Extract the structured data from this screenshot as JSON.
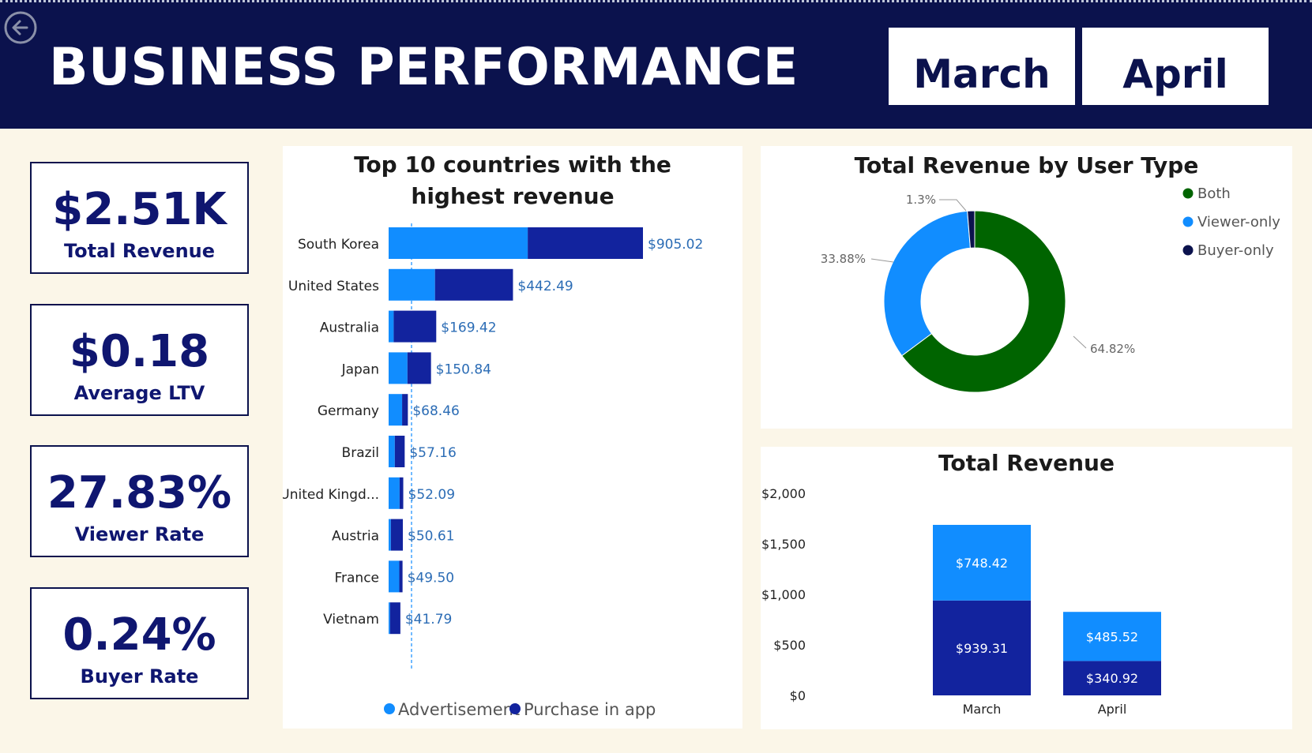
{
  "header": {
    "title": "BUSINESS PERFORMANCE",
    "months": [
      "March",
      "April"
    ],
    "back_icon": "back-arrow-icon",
    "bg_color": "#0b124d"
  },
  "kpis": [
    {
      "value": "$2.51K",
      "label": "Total Revenue"
    },
    {
      "value": "$0.18",
      "label": "Average LTV"
    },
    {
      "value": "27.83%",
      "label": "Viewer Rate"
    },
    {
      "value": "0.24%",
      "label": "Buyer Rate"
    }
  ],
  "colors": {
    "advertisement": "#118dff",
    "purchase": "#12239e",
    "both": "#006400",
    "viewer_only": "#118dff",
    "buyer_only": "#0b124d",
    "bar_label": "#2b6cb5"
  },
  "chart_data": [
    {
      "type": "bar",
      "orientation": "horizontal",
      "stacked": true,
      "title": "Top 10 countries with the highest revenue",
      "categories": [
        "South Korea",
        "United States",
        "Australia",
        "Japan",
        "Germany",
        "Brazil",
        "United Kingd...",
        "Austria",
        "France",
        "Vietnam"
      ],
      "totals": [
        905.02,
        442.49,
        169.42,
        150.84,
        68.46,
        57.16,
        52.09,
        50.61,
        49.5,
        41.79
      ],
      "total_labels": [
        "$905.02",
        "$442.49",
        "$169.42",
        "$150.84",
        "$68.46",
        "$57.16",
        "$52.09",
        "$50.61",
        "$49.50",
        "$41.79"
      ],
      "series": [
        {
          "name": "Advertisement",
          "values": [
            495,
            165,
            18,
            67,
            48,
            22,
            39,
            8,
            38,
            5
          ]
        },
        {
          "name": "Purchase in app",
          "values": [
            410.02,
            277.49,
            151.42,
            83.84,
            20.46,
            35.16,
            13.09,
            42.61,
            11.5,
            36.79
          ]
        }
      ],
      "xlim": [
        0,
        1100
      ],
      "legend": "bottom"
    },
    {
      "type": "pie",
      "donut": true,
      "title": "Total Revenue by User Type",
      "slices": [
        {
          "name": "Both",
          "value": 64.82,
          "label": "64.82%"
        },
        {
          "name": "Viewer-only",
          "value": 33.88,
          "label": "33.88%"
        },
        {
          "name": "Buyer-only",
          "value": 1.3,
          "label": "1.3%"
        }
      ],
      "legend": "right"
    },
    {
      "type": "bar",
      "orientation": "vertical",
      "stacked": true,
      "title": "Total Revenue",
      "categories": [
        "March",
        "April"
      ],
      "series": [
        {
          "name": "Purchase in app",
          "values": [
            939.31,
            340.92
          ],
          "labels": [
            "$939.31",
            "$340.92"
          ]
        },
        {
          "name": "Advertisement",
          "values": [
            748.42,
            485.52
          ],
          "labels": [
            "$748.42",
            "$485.52"
          ]
        }
      ],
      "ylim": [
        0,
        2000
      ],
      "yticks": [
        0,
        500,
        1000,
        1500,
        2000
      ],
      "ytick_labels": [
        "$0",
        "$500",
        "$1,000",
        "$1,500",
        "$2,000"
      ],
      "grid": false
    }
  ]
}
